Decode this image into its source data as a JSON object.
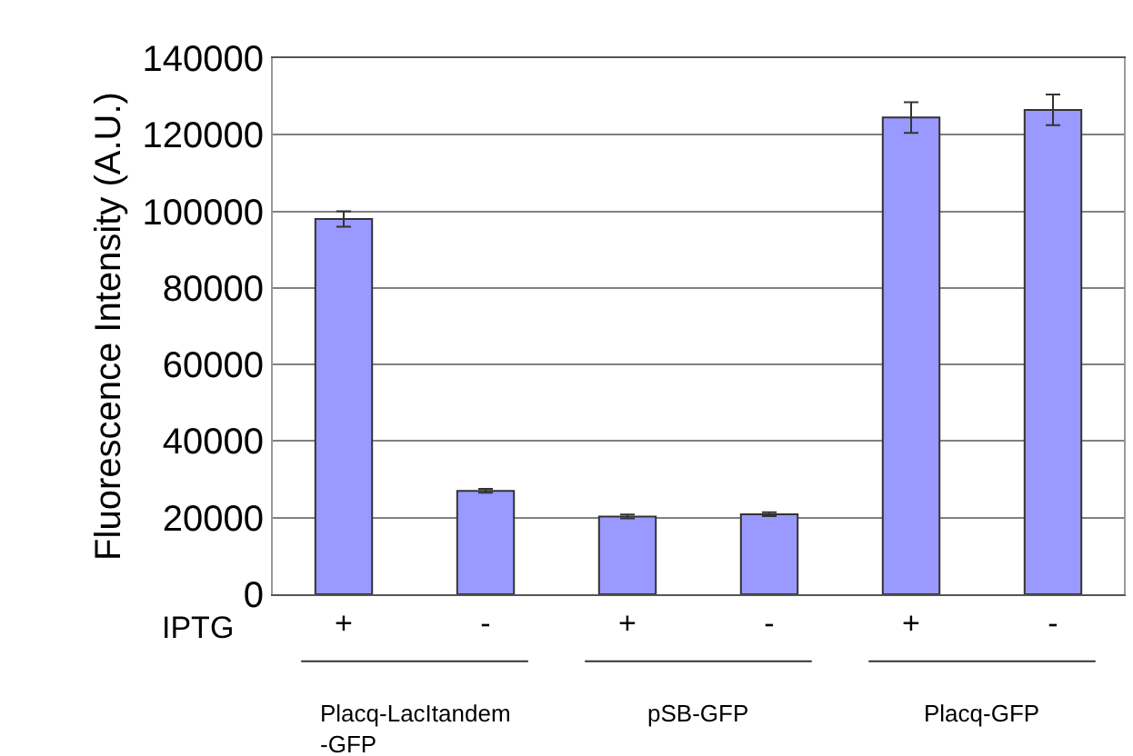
{
  "chart_data": {
    "type": "bar",
    "ylabel": "Fluorescence Intensity (A.U.)",
    "categories": [
      "+",
      "-",
      "+",
      "-",
      "+",
      "-"
    ],
    "values": [
      98000,
      27000,
      20300,
      20900,
      124500,
      126500
    ],
    "errors": [
      2000,
      500,
      500,
      500,
      4000,
      4000
    ],
    "color": "#9999ff",
    "ylim": [
      0,
      140000
    ],
    "yticks": [
      0,
      20000,
      40000,
      60000,
      80000,
      100000,
      120000,
      140000
    ],
    "grid": "y",
    "legend": false,
    "annotations": [
      "IPTG",
      "Placq-LacItandem -GFP",
      "pSB-GFP",
      "Placq-GFP"
    ]
  }
}
